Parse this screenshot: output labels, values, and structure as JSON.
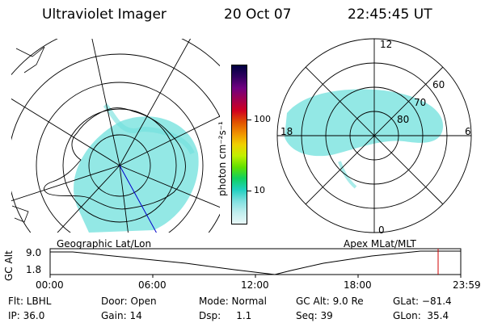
{
  "header": {
    "instrument": "Ultraviolet Imager",
    "date": "20 Oct 07",
    "time": "22:45:45 UT"
  },
  "left_map": {
    "label": "Geographic Lat/Lon"
  },
  "right_map": {
    "label": "Apex MLat/MLT",
    "mlt_labels": [
      "12",
      "18",
      "6",
      "0"
    ],
    "lat_labels": [
      "60",
      "70",
      "80"
    ]
  },
  "colorbar": {
    "unit": "photon cm⁻²s⁻¹",
    "ticks": [
      "100",
      "10"
    ],
    "colors": [
      "#000040",
      "#300060",
      "#700080",
      "#a00050",
      "#d00020",
      "#e05000",
      "#f09000",
      "#f0d000",
      "#c0f000",
      "#60e000",
      "#10d060",
      "#20d0c0",
      "#80e0e0",
      "#c0eeee",
      "#e8f8f8"
    ]
  },
  "timeline": {
    "axis_label": "GC Alt",
    "y_ticks": [
      "9.0",
      "1.8"
    ],
    "x_ticks": [
      "00:00",
      "06:00",
      "12:00",
      "18:00",
      "23:59"
    ],
    "marker_color": "#d00000"
  },
  "status": {
    "flt": "Flt: LBHL",
    "ip": "IP: 36.0",
    "door": "Door: Open",
    "gain": "Gain: 14",
    "mode": "Mode: Normal",
    "dsp": "Dsp:     1.1",
    "gc_alt": "GC Alt: 9.0 Re",
    "seq": "Seq: 39",
    "glat": "GLat: −81.4",
    "glon": "GLon:  35.4"
  }
}
